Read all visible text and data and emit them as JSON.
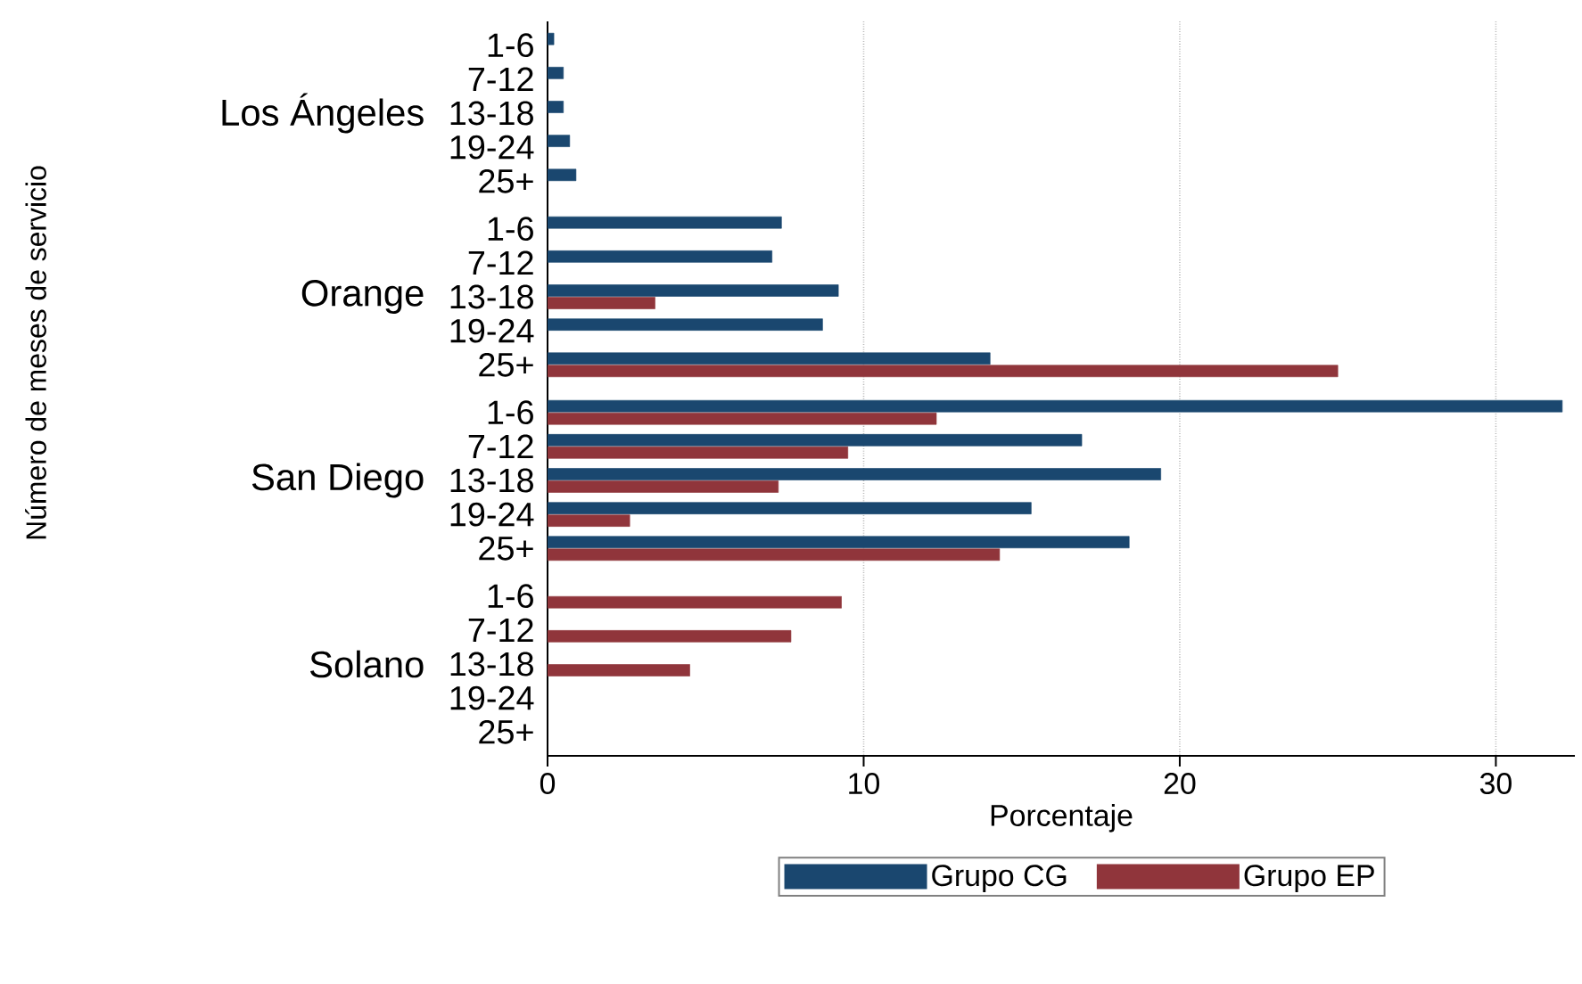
{
  "chart_data": [
    {
      "type": "bar",
      "orientation": "horizontal",
      "ylabel": "Los Ángeles",
      "categories": [
        "1-6",
        "7-12",
        "13-18",
        "19-24",
        "25+"
      ],
      "series": [
        {
          "color": "#1a476f",
          "values": [
            0.2,
            0.5,
            0.5,
            0.7,
            0.9
          ]
        },
        {
          "color": "#90353b",
          "values": [
            null,
            null,
            null,
            null,
            null
          ]
        }
      ],
      "xticks": [
        0,
        10,
        20,
        30
      ],
      "grid": "x",
      "tick_labels": "y"
    },
    {
      "type": "bar",
      "orientation": "horizontal",
      "ylabel": "Orange",
      "categories": [
        "1-6",
        "7-12",
        "13-18",
        "19-24",
        "25+"
      ],
      "series": [
        {
          "color": "#1a476f",
          "values": [
            7.4,
            7.1,
            9.2,
            8.7,
            14.0
          ]
        },
        {
          "color": "#90353b",
          "values": [
            null,
            null,
            3.4,
            null,
            25.0
          ]
        }
      ],
      "xticks": [
        0,
        10,
        20,
        30
      ],
      "grid": "x",
      "tick_labels": "y"
    },
    {
      "type": "bar",
      "orientation": "horizontal",
      "ylabel": "San Diego",
      "categories": [
        "1-6",
        "7-12",
        "13-18",
        "19-24",
        "25+"
      ],
      "series": [
        {
          "color": "#1a476f",
          "values": [
            32.1,
            16.9,
            19.4,
            15.3,
            18.4
          ]
        },
        {
          "color": "#90353b",
          "values": [
            12.3,
            9.5,
            7.3,
            2.6,
            14.3
          ]
        }
      ],
      "xticks": [
        0,
        10,
        20,
        30
      ],
      "grid": "x",
      "tick_labels": "y"
    },
    {
      "type": "bar",
      "orientation": "horizontal",
      "ylabel": "Solano",
      "xlabel": "Porcentaje",
      "annotations": [
        "Número de meses de servicio"
      ],
      "categories": [
        "1-6",
        "7-12",
        "13-18",
        "19-24",
        "25+"
      ],
      "series": [
        {
          "name": "Grupo CG",
          "color": "#1a476f",
          "values": [
            null,
            null,
            null,
            null,
            null
          ]
        },
        {
          "name": "Grupo EP",
          "color": "#90353b",
          "values": [
            9.3,
            7.7,
            4.5,
            null,
            null
          ]
        }
      ],
      "xlim": [
        0,
        32.5
      ],
      "xticks": [
        0,
        10,
        20,
        30
      ],
      "grid": "x",
      "legend": "bottom"
    }
  ]
}
